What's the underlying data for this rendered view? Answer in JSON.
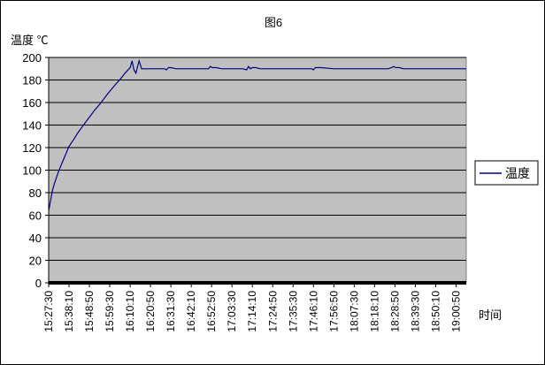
{
  "chart_data": {
    "type": "line",
    "title": "图6",
    "ylabel": "温度 ℃",
    "xlabel": "时间",
    "ylim": [
      0,
      200
    ],
    "y_ticks": [
      0,
      20,
      40,
      60,
      80,
      100,
      120,
      140,
      160,
      180,
      200
    ],
    "x_tick_labels": [
      "15:27:30",
      "15:38:10",
      "15:48:50",
      "15:59:30",
      "16:10:10",
      "16:20:50",
      "16:31:30",
      "16:42:10",
      "16:52:50",
      "17:03:30",
      "17:14:10",
      "17:24:50",
      "17:35:30",
      "17:46:10",
      "17:56:50",
      "18:07:30",
      "18:18:10",
      "18:28:50",
      "18:39:30",
      "18:50:10",
      "19:00:50"
    ],
    "x_range": [
      "15:27:30",
      "19:06:10"
    ],
    "grid": "horizontal",
    "background_color": "#c0c0c0",
    "legend_position": "right",
    "series": [
      {
        "name": "温度",
        "color": "#000080",
        "x": [
          "15:27:30",
          "15:28:30",
          "15:29:30",
          "15:30:30",
          "15:31:30",
          "15:32:30",
          "15:34:10",
          "15:36:10",
          "15:38:10",
          "15:40:30",
          "15:43:10",
          "15:46:10",
          "15:48:50",
          "15:51:30",
          "15:54:30",
          "15:57:10",
          "15:59:30",
          "16:02:30",
          "16:05:10",
          "16:07:30",
          "16:10:10",
          "16:11:10",
          "16:12:10",
          "16:13:10",
          "16:14:50",
          "16:16:10",
          "16:17:10",
          "16:18:10",
          "16:20:50",
          "16:25:10",
          "16:28:10",
          "16:29:10",
          "16:30:10",
          "16:31:30",
          "16:34:10",
          "16:38:10",
          "16:42:10",
          "16:48:10",
          "16:51:10",
          "16:52:10",
          "16:53:10",
          "16:55:10",
          "16:58:10",
          "17:03:30",
          "17:09:10",
          "17:11:10",
          "17:12:10",
          "17:13:10",
          "17:14:10",
          "17:16:10",
          "17:18:10",
          "17:24:50",
          "17:35:30",
          "17:45:10",
          "17:46:10",
          "17:47:10",
          "17:50:10",
          "17:56:50",
          "18:07:30",
          "18:18:10",
          "18:25:10",
          "18:27:10",
          "18:28:10",
          "18:29:10",
          "18:31:10",
          "18:33:10",
          "18:39:30",
          "18:50:10",
          "19:00:50",
          "19:06:10"
        ],
        "values": [
          64,
          73,
          82,
          88,
          93,
          98,
          105,
          113,
          121,
          127,
          134,
          141,
          147,
          153,
          159,
          165,
          170,
          176,
          181,
          186,
          191,
          197,
          189,
          186,
          197,
          190,
          190,
          190,
          190,
          190,
          190,
          189,
          191,
          191,
          190,
          190,
          190,
          190,
          190,
          192,
          191,
          191,
          190,
          190,
          190,
          189,
          192,
          190,
          191,
          191,
          190,
          190,
          190,
          190,
          189,
          191,
          191,
          190,
          190,
          190,
          190,
          191,
          192,
          191,
          191,
          190,
          190,
          190,
          190,
          190
        ]
      }
    ]
  }
}
